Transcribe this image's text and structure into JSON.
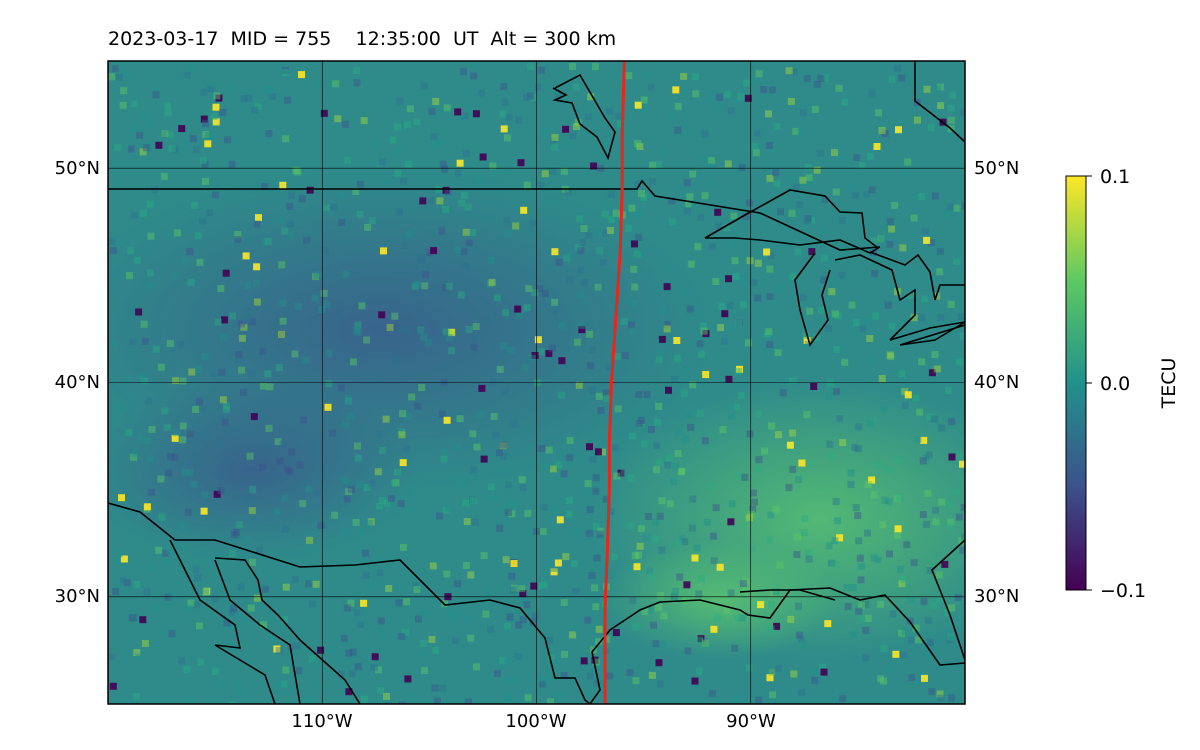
{
  "title": "2023-03-17  MID = 755    12:35:00  UT  Alt = 300 km",
  "map": {
    "lon_range": [
      -120,
      -80
    ],
    "lat_range": [
      25,
      55
    ],
    "lon_grid": [
      -110,
      -100,
      -90
    ],
    "lat_grid": [
      30,
      40,
      50
    ],
    "lon_tick_labels": [
      "110°W",
      "100°W",
      "90°W"
    ],
    "lat_tick_labels": [
      "30°N",
      "40°N",
      "50°N"
    ],
    "meridian_line": {
      "color": "#e8261c",
      "points": [
        [
          -95.9,
          55
        ],
        [
          -96.0,
          51.5
        ],
        [
          -96.0,
          49
        ],
        [
          -96.1,
          46
        ],
        [
          -96.3,
          43
        ],
        [
          -96.5,
          40
        ],
        [
          -96.6,
          37.2
        ],
        [
          -96.6,
          35
        ],
        [
          -96.7,
          32
        ],
        [
          -96.8,
          29.5
        ],
        [
          -96.8,
          27
        ],
        [
          -96.8,
          25
        ]
      ]
    },
    "field_colors": {
      "background": "#2d8a8a",
      "cool_region": "#35598a",
      "warm_region": "#4fb87a"
    }
  },
  "colorbar": {
    "label": "TECU",
    "ticks": [
      "0.1",
      "0.0",
      "−0.1"
    ],
    "colormap": [
      "#440154",
      "#3b528b",
      "#21918c",
      "#5ec962",
      "#fde725"
    ]
  }
}
